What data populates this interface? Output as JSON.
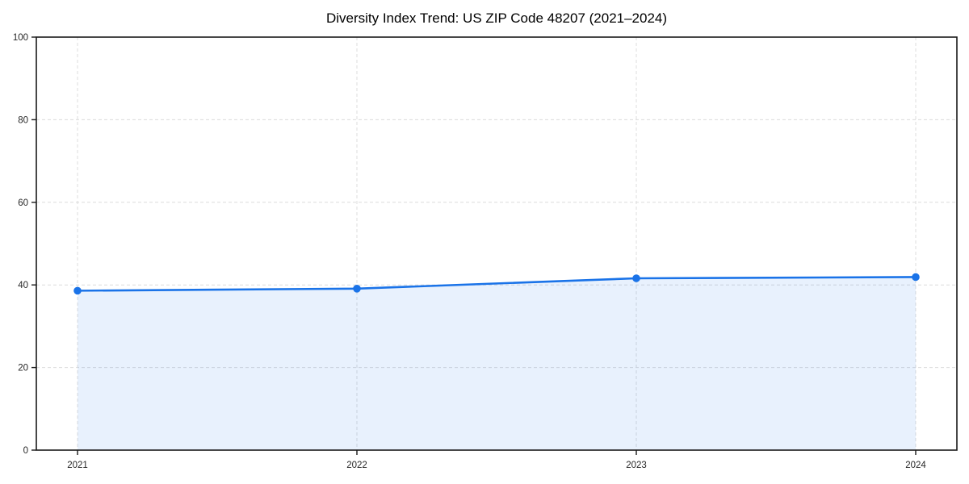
{
  "chart_data": {
    "type": "area",
    "title": "Diversity Index Trend: US ZIP Code 48207 (2021–2024)",
    "categories": [
      "2021",
      "2022",
      "2023",
      "2024"
    ],
    "values": [
      38.6,
      39.1,
      41.6,
      41.9
    ],
    "series_name": "Diversity Index",
    "xlabel": "",
    "ylabel": "",
    "ylim": [
      0,
      100
    ],
    "yticks": [
      0,
      20,
      40,
      60,
      80,
      100
    ],
    "grid": "dashed",
    "legend_position": "none",
    "colors": {
      "line": "#1a73e8",
      "marker": "#1a73e8",
      "fill": "#1a73e8",
      "fill_opacity": 0.1,
      "grid": "#dcdcdc",
      "axis": "#1a1a1a",
      "tick_label": "#262626",
      "background": "#ffffff"
    }
  }
}
